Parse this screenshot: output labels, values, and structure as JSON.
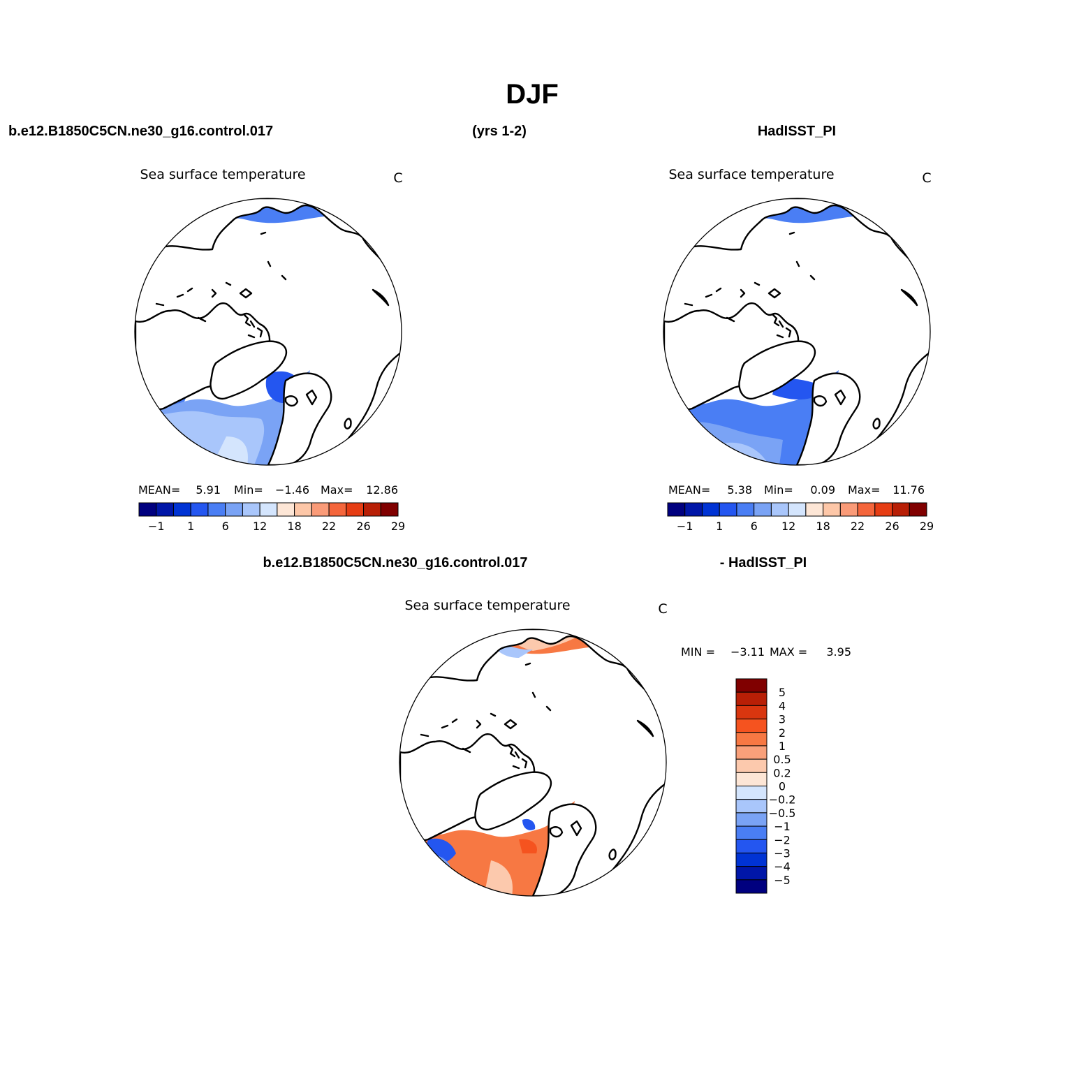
{
  "page": {
    "title": "DJF",
    "case_name": "b.e12.B1850C5CN.ne30_g16.control.017",
    "years": "(yrs 1-2)",
    "obs_name": "HadISST_PI",
    "diff_case": "b.e12.B1850C5CN.ne30_g16.control.017",
    "diff_obs": "- HadISST_PI"
  },
  "palette": {
    "main": [
      "#00007f",
      "#0016a8",
      "#0033d4",
      "#2456f0",
      "#4a7ef4",
      "#7aa3f5",
      "#a9c6fb",
      "#d4e5fd",
      "#fde6d6",
      "#fdc7a8",
      "#fa9b78",
      "#f5663c",
      "#e63d14",
      "#b81f06",
      "#800000"
    ],
    "diff": [
      "#800000",
      "#b81f06",
      "#d9360f",
      "#f5531f",
      "#f77843",
      "#f9a07a",
      "#fcc9ad",
      "#fde6d6",
      "#d4e5fd",
      "#a9c6fb",
      "#7aa3f5",
      "#4a7ef4",
      "#2456f0",
      "#0033d4",
      "#0016a8",
      "#00007f"
    ]
  },
  "panels": [
    {
      "id": "model",
      "long_name": "Sea surface temperature",
      "units": "C",
      "stats": {
        "mean_label": "MEAN=",
        "mean": "5.91",
        "min_label": "Min=",
        "min": "−1.46",
        "max_label": "Max=",
        "max": "12.86"
      },
      "colorbar_ticks": [
        "−1",
        "1",
        "6",
        "12",
        "18",
        "22",
        "26",
        "29"
      ]
    },
    {
      "id": "obs",
      "long_name": "Sea surface temperature",
      "units": "C",
      "stats": {
        "mean_label": "MEAN=",
        "mean": "5.38",
        "min_label": "Min=",
        "min": "0.09",
        "max_label": "Max=",
        "max": "11.76"
      },
      "colorbar_ticks": [
        "−1",
        "1",
        "6",
        "12",
        "18",
        "22",
        "26",
        "29"
      ]
    },
    {
      "id": "diff",
      "long_name": "Sea surface temperature",
      "units": "C",
      "stats": {
        "min_label": "MIN =",
        "min": "−3.11",
        "max_label": "MAX =",
        "max": "3.95"
      },
      "colorbar_ticks": [
        "5",
        "4",
        "3",
        "2",
        "1",
        "0.5",
        "0.2",
        "0",
        "−0.2",
        "−0.5",
        "−1",
        "−2",
        "−3",
        "−4",
        "−5"
      ]
    }
  ]
}
